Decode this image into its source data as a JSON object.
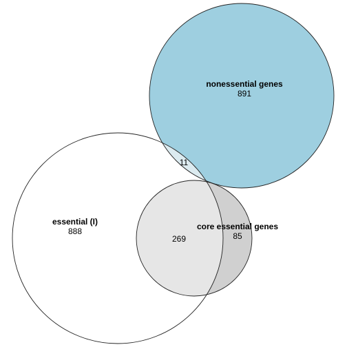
{
  "venn": {
    "sets": {
      "nonessential": {
        "label": "nonessential genes",
        "count": "891",
        "fill_color": "#9ecfe0"
      },
      "essential": {
        "label": "essential (I)",
        "count": "888",
        "fill_color": "#ffffff"
      },
      "core": {
        "label": "core essential genes",
        "count": "85",
        "fill_color": "#d0d0d0"
      }
    },
    "intersections": {
      "essential_nonessential": {
        "count": "11",
        "fill_color": "#dcebf0"
      },
      "essential_core": {
        "count": "269",
        "fill_color": "#e6e6e6"
      }
    },
    "outline_color": "#222222"
  }
}
